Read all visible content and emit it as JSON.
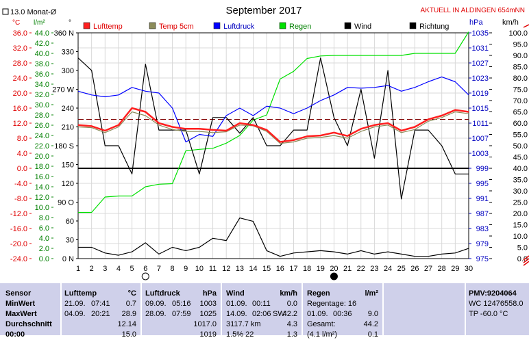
{
  "header": {
    "title": "September 2017",
    "station": "AKTUELL IN ALDINGEN 654mNN",
    "monthly_avg": "13.0 Monat-Ø",
    "unit_c": "°C",
    "unit_lm2": "l/m²",
    "unit_deg": "°",
    "unit_hpa": "hPa",
    "unit_kmh": "km/h"
  },
  "legend": [
    {
      "label": "Lufttemp",
      "color": "#ff2020"
    },
    {
      "label": "Temp 5cm",
      "color": "#8c8c5a"
    },
    {
      "label": "Luftdruck",
      "color": "#0000ff"
    },
    {
      "label": "Regen",
      "color": "#00e000"
    },
    {
      "label": "Wind",
      "color": "#000000"
    },
    {
      "label": "Richtung",
      "color": "#000000"
    }
  ],
  "chart_data": {
    "type": "line",
    "title": "September 2017",
    "x": [
      1,
      2,
      3,
      4,
      5,
      6,
      7,
      8,
      9,
      10,
      11,
      12,
      13,
      14,
      15,
      16,
      17,
      18,
      19,
      20,
      21,
      22,
      23,
      24,
      25,
      26,
      27,
      28,
      29,
      30
    ],
    "xlim": [
      1,
      30
    ],
    "axes": {
      "temp_c": {
        "ticks": [
          "36.0",
          "32.0",
          "28.0",
          "24.0",
          "20.0",
          "16.0",
          "12.0",
          "8.0",
          "4.0",
          "0.0",
          "-4.0",
          "-8.0",
          "-12.0",
          "-16.0",
          "-20.0",
          "-24.0"
        ],
        "ylim": [
          -24,
          36
        ],
        "color": "#ff2020"
      },
      "rain_lm2": {
        "ticks": [
          "44.0",
          "42.0",
          "40.0",
          "38.0",
          "36.0",
          "34.0",
          "32.0",
          "30.0",
          "28.0",
          "26.0",
          "24.0",
          "22.0",
          "20.0",
          "18.0",
          "16.0",
          "14.0",
          "12.0",
          "10.0",
          "8.0",
          "6.0",
          "4.0",
          "2.0",
          "0.0"
        ],
        "ylim": [
          0,
          44
        ],
        "color": "#00a000"
      },
      "direction_deg": {
        "ticks": [
          "360 N",
          "330",
          "300",
          "270 W",
          "240",
          "210",
          "180 S",
          "150",
          "120",
          "90 O",
          "60",
          "30",
          "0 N"
        ],
        "ylim": [
          0,
          360
        ],
        "color": "#000000"
      },
      "pressure_hpa": {
        "ticks": [
          "1035",
          "1031",
          "1027",
          "1023",
          "1019",
          "1015",
          "1011",
          "1007",
          "1003",
          "999",
          "995",
          "991",
          "987",
          "983",
          "979",
          "975"
        ],
        "ylim": [
          975,
          1035
        ],
        "color": "#0000c0"
      },
      "wind_kmh": {
        "ticks": [
          "100.0",
          "95.0",
          "90.0",
          "85.0",
          "80.0",
          "75.0",
          "70.0",
          "65.0",
          "60.0",
          "55.0",
          "50.0",
          "45.0",
          "40.0",
          "35.0",
          "30.0",
          "25.0",
          "20.0",
          "15.0",
          "10.0",
          "5.0",
          "0.0"
        ],
        "ylim": [
          0,
          100
        ],
        "color": "#000000"
      }
    },
    "series": [
      {
        "name": "Lufttemp",
        "axis": "temp_c",
        "color": "#ff2020",
        "values": [
          11.5,
          11.2,
          10.0,
          11.5,
          16.0,
          15.0,
          12.0,
          11.0,
          10.5,
          10.5,
          10.2,
          10.0,
          12.0,
          11.5,
          10.2,
          7.0,
          7.5,
          8.5,
          8.7,
          9.5,
          8.6,
          10.5,
          11.5,
          12.0,
          10.0,
          11.0,
          13.0,
          14.0,
          15.5,
          15.0
        ]
      },
      {
        "name": "Temp 5cm",
        "axis": "temp_c",
        "color": "#8c8c5a",
        "values": [
          11.0,
          10.8,
          9.5,
          11.0,
          15.0,
          14.0,
          11.5,
          10.3,
          9.8,
          9.8,
          9.5,
          9.7,
          11.5,
          11.3,
          9.8,
          6.6,
          7.0,
          8.0,
          8.2,
          8.7,
          8.0,
          9.8,
          11.0,
          11.5,
          9.5,
          10.3,
          12.5,
          13.5,
          15.0,
          14.5
        ]
      },
      {
        "name": "Luftdruck",
        "axis": "pressure_hpa",
        "color": "#0000ff",
        "values": [
          1019.5,
          1018.5,
          1018.0,
          1018.5,
          1020.5,
          1019.5,
          1019.0,
          1015.0,
          1006.0,
          1008.0,
          1007.5,
          1013.0,
          1015.0,
          1013.0,
          1015.5,
          1015.0,
          1013.5,
          1015.0,
          1017.0,
          1018.5,
          1020.5,
          1020.3,
          1020.5,
          1021.0,
          1019.5,
          1020.5,
          1022.0,
          1023.3,
          1022.0,
          1018.5
        ]
      },
      {
        "name": "Regen",
        "axis": "rain_lm2",
        "color": "#00e000",
        "values": [
          9.0,
          9.0,
          12.0,
          12.2,
          12.2,
          14.0,
          14.5,
          14.6,
          21.0,
          21.3,
          21.5,
          22.5,
          24.0,
          27.0,
          28.0,
          35.0,
          36.5,
          39.0,
          39.5,
          39.6,
          39.6,
          39.6,
          39.6,
          39.6,
          39.6,
          40.0,
          40.0,
          40.0,
          40.0,
          44.2
        ]
      },
      {
        "name": "Wind",
        "axis": "wind_kmh",
        "color": "#000000",
        "values": [
          5.0,
          5.0,
          2.5,
          1.5,
          3.0,
          7.0,
          2.0,
          5.0,
          3.5,
          5.0,
          9.0,
          8.0,
          18.0,
          16.5,
          3.5,
          1.0,
          2.5,
          3.0,
          3.5,
          3.0,
          2.0,
          3.5,
          2.0,
          3.0,
          2.0,
          1.0,
          1.0,
          2.0,
          2.5,
          4.5
        ]
      },
      {
        "name": "Richtung",
        "axis": "direction_deg",
        "color": "#000000",
        "values": [
          320,
          300,
          180,
          180,
          135,
          310,
          205,
          205,
          205,
          135,
          225,
          225,
          200,
          225,
          180,
          180,
          205,
          205,
          320,
          225,
          180,
          270,
          160,
          300,
          95,
          205,
          205,
          180,
          135,
          135
        ]
      }
    ],
    "reference_lines": [
      {
        "axis": "temp_c",
        "value": 13.0,
        "label": "13.0 Monat-Ø",
        "color": "#800000",
        "style": "dashed"
      },
      {
        "axis": "temp_c",
        "value": 0.0,
        "color": "#000000",
        "style": "solid"
      }
    ],
    "moon_phases": [
      {
        "day": 6,
        "phase": "full"
      },
      {
        "day": 20,
        "phase": "new"
      }
    ],
    "grid": true
  },
  "stats": {
    "sensor": {
      "title": "Sensor",
      "rows": [
        "MinWert",
        "MaxWert",
        "Durchschnitt",
        "00:00"
      ]
    },
    "lufttemp": {
      "title": "Lufttemp",
      "unit": "°C",
      "min_date": "21.09.",
      "min_time": "07:41",
      "min_val": "0.7",
      "max_date": "04.09.",
      "max_time": "20:21",
      "max_val": "28.9",
      "avg": "12.14",
      "last": "15.0"
    },
    "luftdruck": {
      "title": "Luftdruck",
      "unit": "hPa",
      "min_date": "09.09.",
      "min_time": "05:16",
      "min_val": "1003",
      "max_date": "28.09.",
      "max_time": "07:59",
      "max_val": "1025",
      "avg": "1017.0",
      "last": "1019"
    },
    "wind": {
      "title": "Wind",
      "unit": "km/h",
      "min_date": "01.09.",
      "min_time": "00:11",
      "min_val": "0.0",
      "max_date": "14.09.",
      "max_time": "02:06",
      "max_dir": "SW",
      "max_val": "42.2",
      "distance": "3117.7 km",
      "avg": "4.3",
      "last_a": "1.5% 22",
      "last_b": "1.3"
    },
    "regen": {
      "title": "Regen",
      "unit": "l/m²",
      "days": "Regentage: 16",
      "max_date": "01.09.",
      "max_time": "00:36",
      "max_val": "9.0",
      "total_label": "Gesamt:",
      "total": "44.2",
      "last_a": "(4.1 l/m²)",
      "last_b": "0.1"
    },
    "extra": {
      "pmv": "PMV:9204064",
      "wc": "WC 12476558.0",
      "tp": "TP -60.0 °C"
    }
  }
}
